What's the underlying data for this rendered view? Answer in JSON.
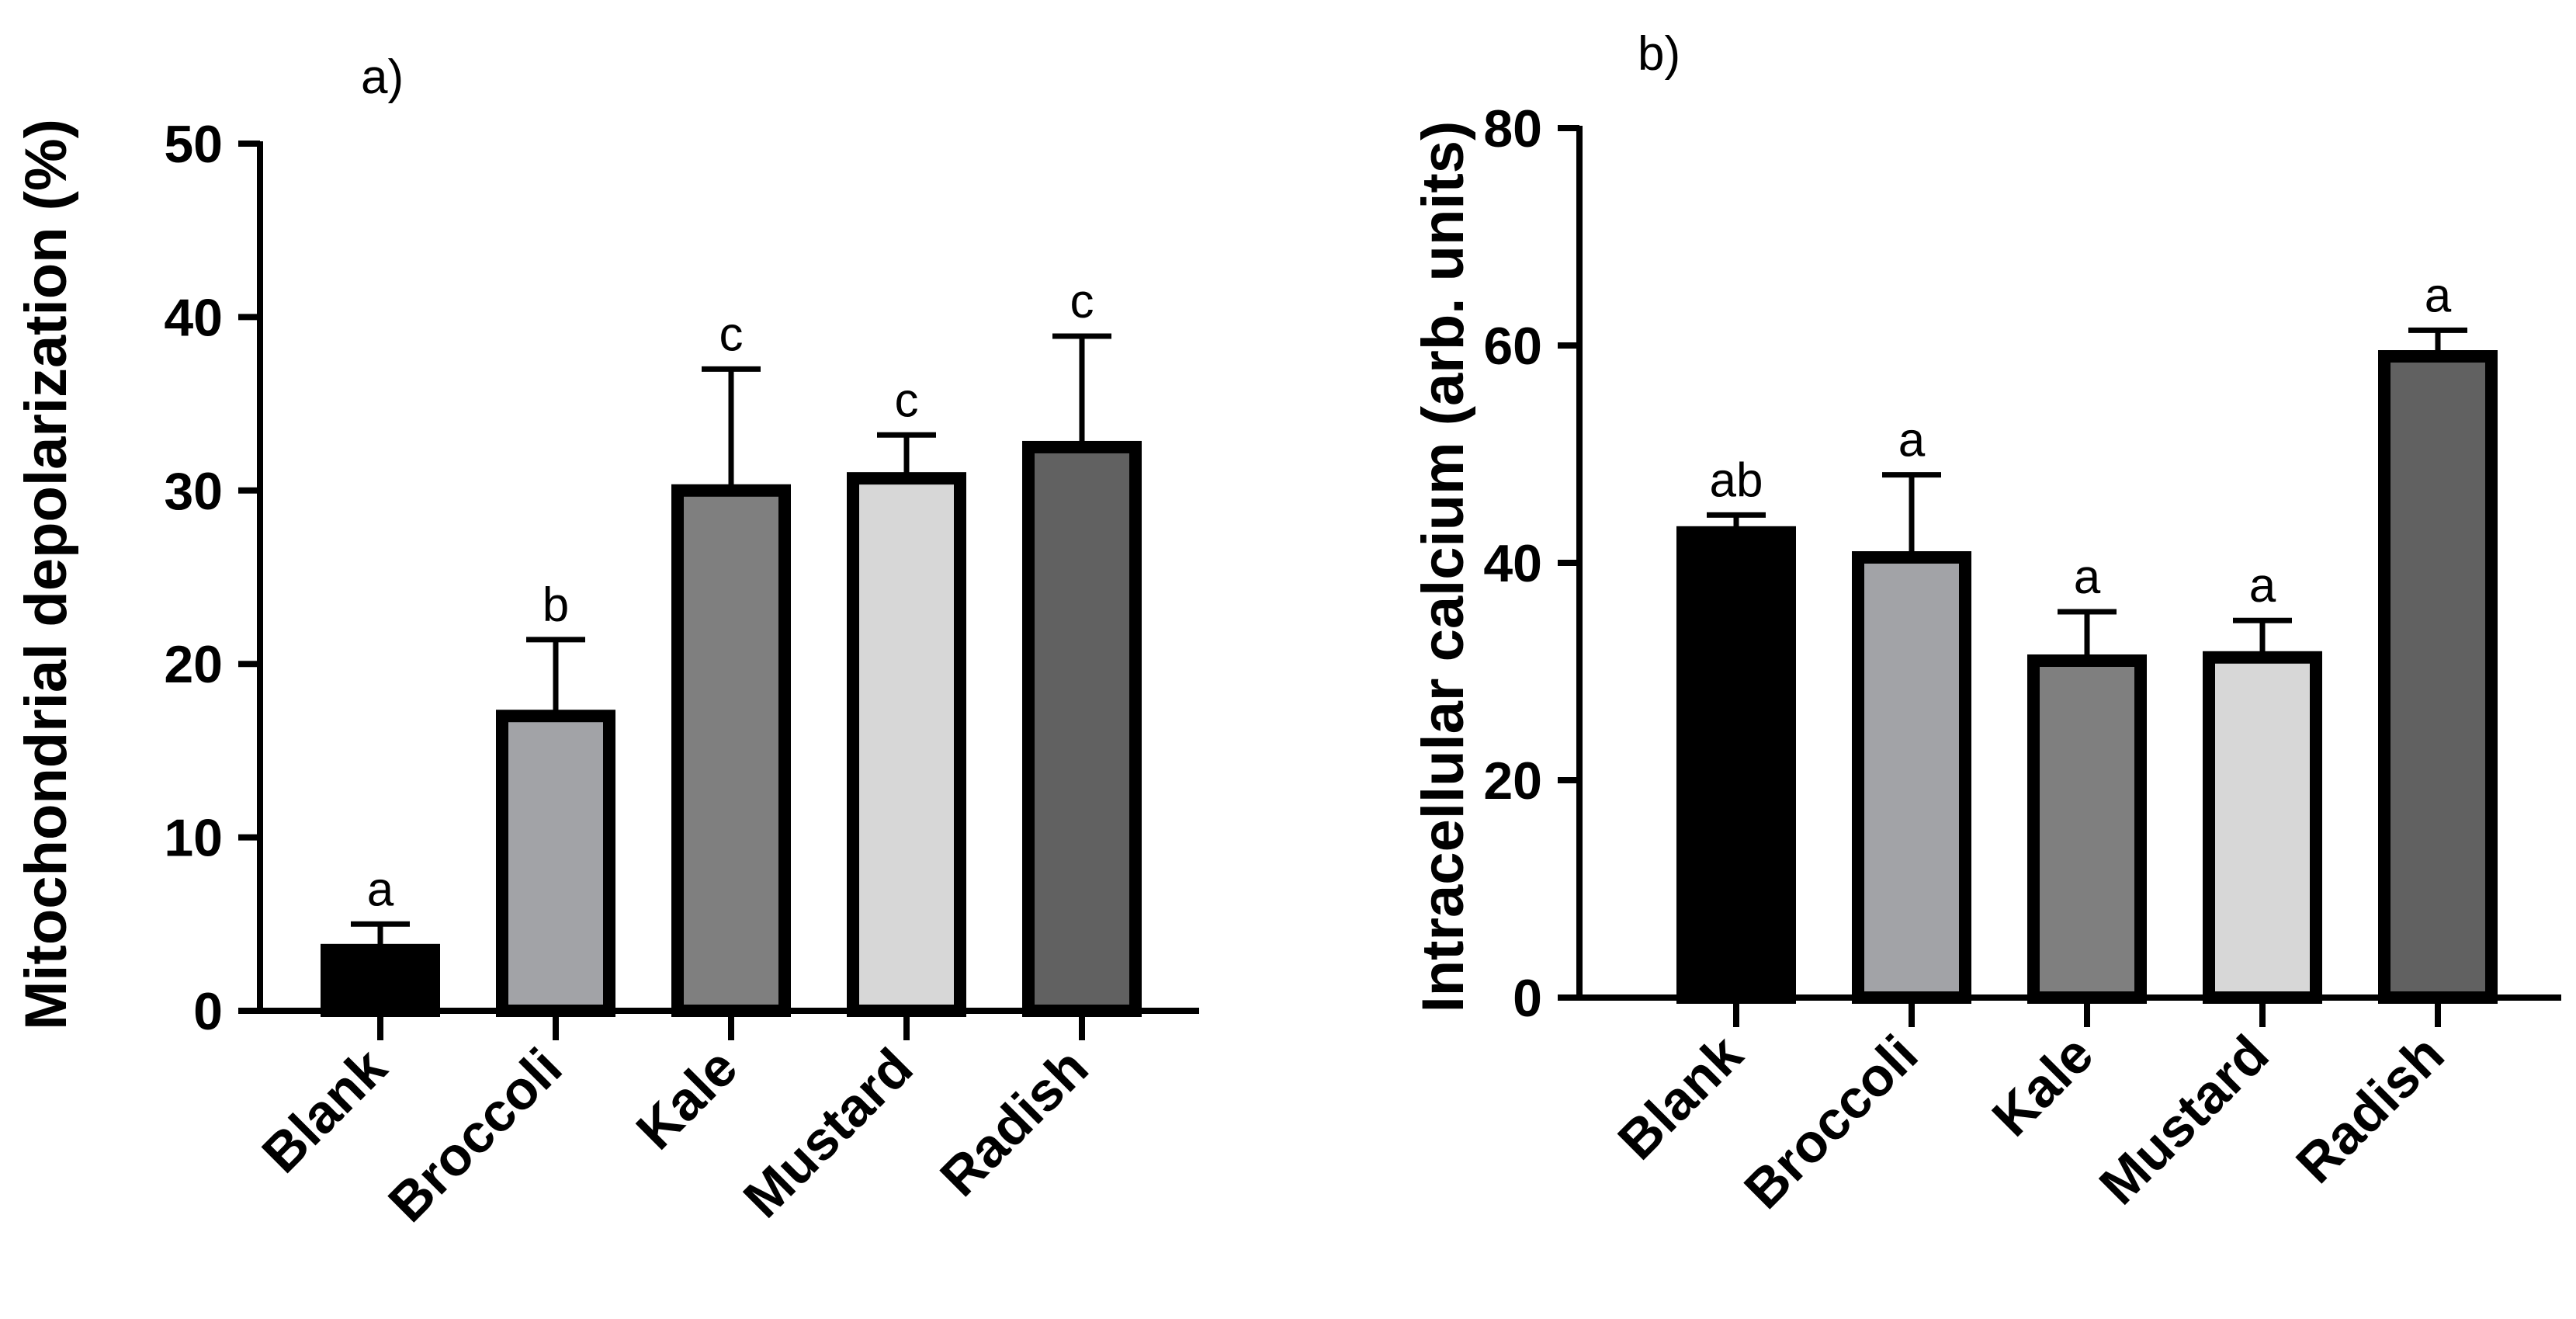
{
  "chart_data": [
    {
      "type": "bar",
      "panel": "a)",
      "title": "",
      "xlabel": "",
      "ylabel": "Mitochondrial depolarization (%)",
      "ylim": [
        0,
        50
      ],
      "yticks": [
        "0",
        "10",
        "20",
        "30",
        "40",
        "50"
      ],
      "categories": [
        "Blank",
        "Broccoli",
        "Kale",
        "Mustard",
        "Radish"
      ],
      "values": [
        3.5,
        17,
        30,
        30.7,
        32.5
      ],
      "errors": [
        1.5,
        4.4,
        7.0,
        2.5,
        6.4
      ],
      "significance": [
        "a",
        "b",
        "c",
        "c",
        "c"
      ],
      "colors": [
        "#000000",
        "#a2a3a7",
        "#7f7f7f",
        "#d7d7d7",
        "#616161"
      ],
      "legend": "none",
      "grid": false
    },
    {
      "type": "bar",
      "panel": "b)",
      "title": "",
      "xlabel": "",
      "ylabel": "Intracellular calcium (arb. units)",
      "ylim": [
        0,
        80
      ],
      "yticks": [
        "0",
        "20",
        "40",
        "60",
        "80"
      ],
      "categories": [
        "Blank",
        "Broccoli",
        "Kale",
        "Mustard",
        "Radish"
      ],
      "values": [
        42.8,
        40.5,
        31,
        31.3,
        59
      ],
      "errors": [
        1.6,
        7.6,
        4.5,
        3.4,
        2.4
      ],
      "significance": [
        "ab",
        "a",
        "a",
        "a",
        "a"
      ],
      "colors": [
        "#000000",
        "#a2a3a7",
        "#7f7f7f",
        "#d7d7d7",
        "#616161"
      ],
      "legend": "none",
      "grid": false
    }
  ]
}
